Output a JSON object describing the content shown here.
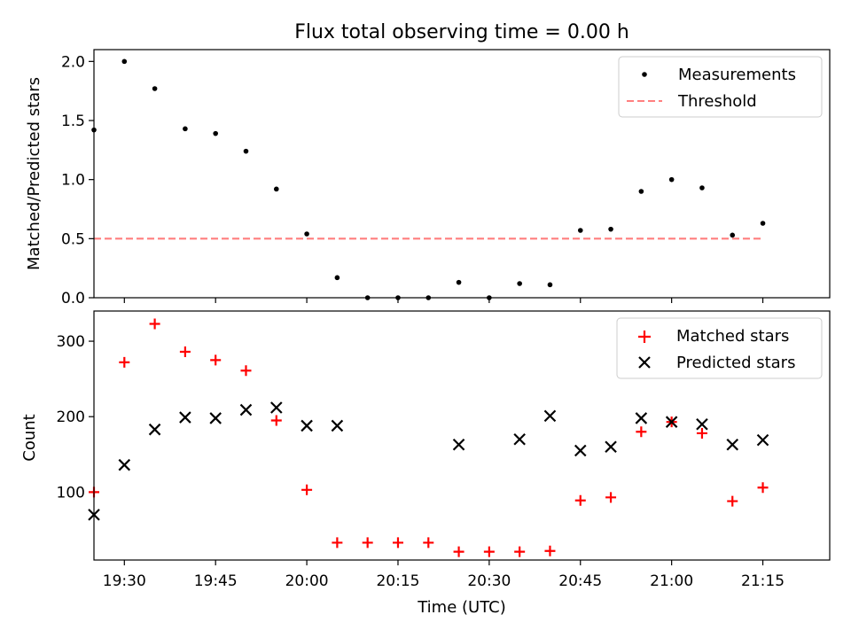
{
  "chart_data": [
    {
      "type": "scatter",
      "title": "Flux total observing time = 0.00 h",
      "xlabel": "",
      "ylabel": "Matched/Predicted stars",
      "ylim": [
        0.0,
        2.1
      ],
      "xlim_minutes": [
        1165,
        1286
      ],
      "yticks": [
        0.0,
        0.5,
        1.0,
        1.5,
        2.0
      ],
      "ytick_labels": [
        "0.0",
        "0.5",
        "1.0",
        "1.5",
        "2.0"
      ],
      "legend_position": "top-right",
      "series": [
        {
          "name": "Measurements",
          "marker": "dot",
          "color": "#000000",
          "x_minutes": [
            1165,
            1170,
            1175,
            1180,
            1185,
            1190,
            1195,
            1200,
            1205,
            1210,
            1215,
            1220,
            1225,
            1230,
            1235,
            1240,
            1245,
            1250,
            1255,
            1260,
            1265,
            1270,
            1275
          ],
          "values": [
            1.42,
            2.0,
            1.77,
            1.43,
            1.39,
            1.24,
            0.92,
            0.54,
            0.17,
            0.0,
            0.0,
            0.0,
            0.13,
            0.0,
            0.12,
            0.11,
            0.57,
            0.58,
            0.9,
            1.0,
            0.93,
            0.53,
            0.63
          ]
        },
        {
          "name": "Threshold",
          "marker": "dashed-line",
          "color": "#ff7f7f",
          "x_minutes": [
            1165,
            1275
          ],
          "values": [
            0.5,
            0.5
          ]
        }
      ]
    },
    {
      "type": "scatter",
      "title": "",
      "xlabel": "Time (UTC)",
      "ylabel": "Count",
      "ylim": [
        10,
        340
      ],
      "yticks": [
        100,
        200,
        300
      ],
      "ytick_labels": [
        "100",
        "200",
        "300"
      ],
      "xlim_minutes": [
        1165,
        1286
      ],
      "xticks_minutes": [
        1170,
        1185,
        1200,
        1215,
        1230,
        1245,
        1260,
        1275
      ],
      "xtick_labels": [
        "19:30",
        "19:45",
        "20:00",
        "20:15",
        "20:30",
        "20:45",
        "21:00",
        "21:15"
      ],
      "legend_position": "top-right",
      "series": [
        {
          "name": "Matched stars",
          "marker": "plus",
          "color": "#ff0000",
          "x_minutes": [
            1165,
            1170,
            1175,
            1180,
            1185,
            1190,
            1195,
            1200,
            1205,
            1210,
            1215,
            1220,
            1225,
            1230,
            1235,
            1240,
            1245,
            1250,
            1255,
            1260,
            1265,
            1270,
            1275
          ],
          "values": [
            100,
            272,
            323,
            286,
            275,
            261,
            195,
            103,
            33,
            33,
            33,
            33,
            21,
            21,
            21,
            22,
            89,
            93,
            180,
            193,
            178,
            88,
            106
          ]
        },
        {
          "name": "Predicted stars",
          "marker": "x",
          "color": "#000000",
          "x_minutes": [
            1165,
            1170,
            1175,
            1180,
            1185,
            1190,
            1195,
            1200,
            1205,
            1225,
            1235,
            1240,
            1245,
            1250,
            1255,
            1260,
            1265,
            1270,
            1275
          ],
          "values": [
            70,
            136,
            183,
            199,
            198,
            209,
            212,
            188,
            188,
            163,
            170,
            201,
            155,
            160,
            198,
            193,
            190,
            163,
            169
          ]
        }
      ]
    }
  ]
}
